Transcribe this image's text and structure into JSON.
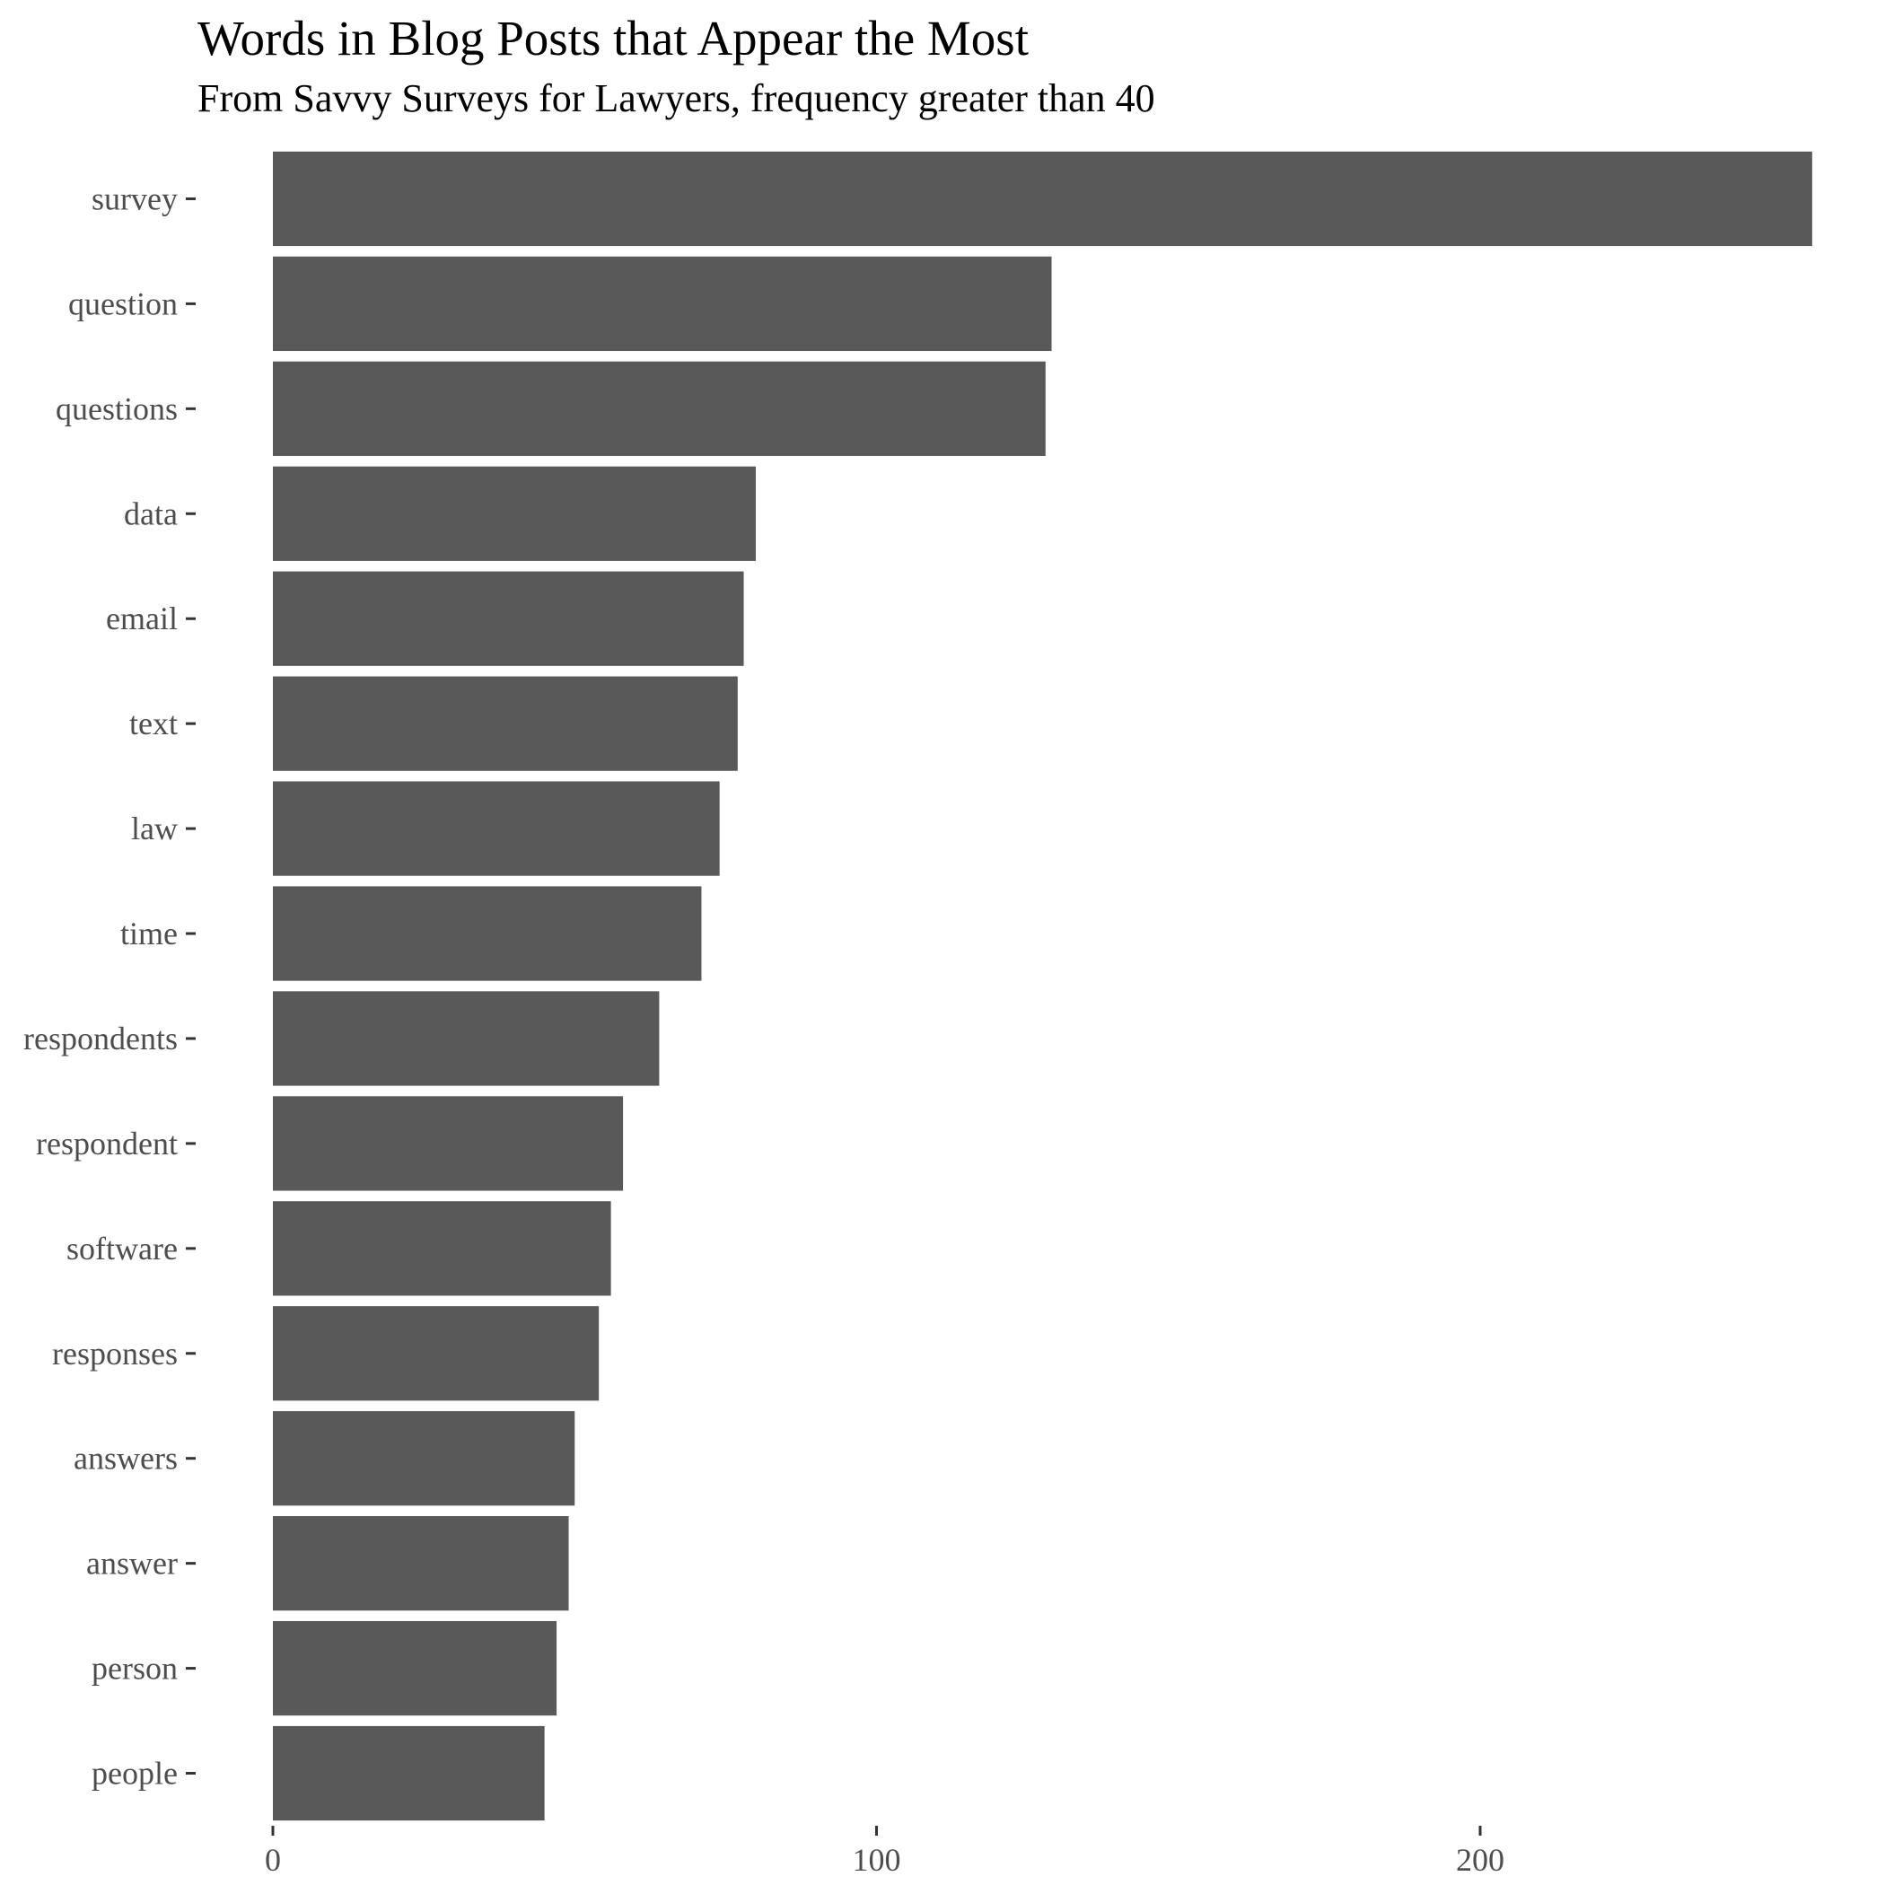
{
  "chart_data": {
    "type": "bar",
    "orientation": "horizontal",
    "title": "Words in Blog Posts that Appear the Most",
    "subtitle": "From Savvy Surveys for Lawyers, frequency greater than 40",
    "xlabel": "",
    "ylabel": "",
    "categories": [
      "survey",
      "question",
      "questions",
      "data",
      "email",
      "text",
      "law",
      "time",
      "respondents",
      "respondent",
      "software",
      "responses",
      "answers",
      "answer",
      "person",
      "people"
    ],
    "values": [
      255,
      129,
      128,
      80,
      78,
      77,
      74,
      71,
      64,
      58,
      56,
      54,
      50,
      49,
      47,
      45
    ],
    "x_ticks": [
      0,
      100,
      200
    ],
    "xlim": [
      -12.5,
      262
    ],
    "grid": false,
    "legend": "none",
    "bar_color": "#595959"
  }
}
